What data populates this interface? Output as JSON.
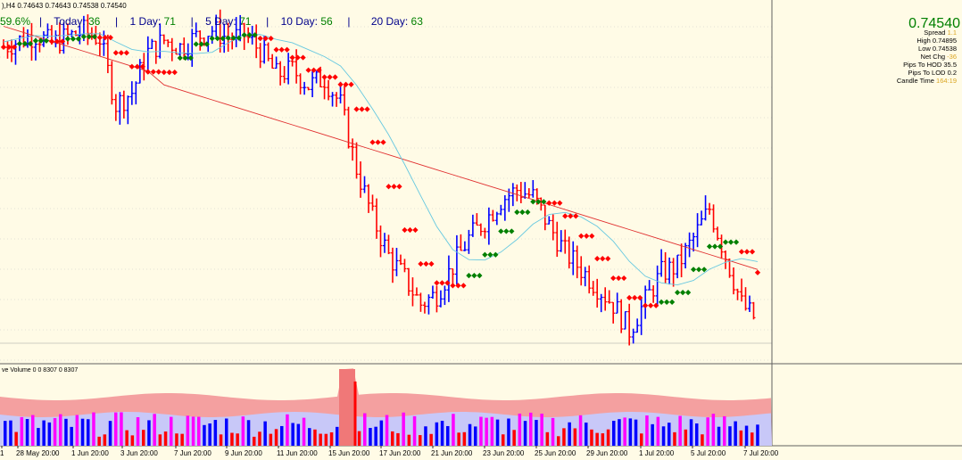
{
  "header": {
    "symbol_line": "),H4  0.74643 0.74643 0.74538 0.74540"
  },
  "stats": {
    "pct": "59.6%",
    "today_label": "Today:",
    "today_val": "36",
    "d1_label": "1 Day:",
    "d1_val": "71",
    "d5_label": "5 Day:",
    "d5_val": "71",
    "d10_label": "10 Day:",
    "d10_val": "56",
    "d20_label": "20 Day:",
    "d20_val": "63",
    "sep": "|"
  },
  "price": {
    "last": "0.74540"
  },
  "info": {
    "rows": [
      {
        "k": "Spread",
        "v": "1.1",
        "y": true
      },
      {
        "k": "High",
        "v": "0.74895",
        "y": false
      },
      {
        "k": "Low",
        "v": "0.74538",
        "y": false
      },
      {
        "k": "Net Chg",
        "v": "-36",
        "y": true
      },
      {
        "k": "Pips To HOD",
        "v": "35.5",
        "y": false
      },
      {
        "k": "Pips To LOD",
        "v": "0.2",
        "y": false
      },
      {
        "k": "Candle Time",
        "v": "164:19",
        "y": true
      }
    ]
  },
  "volume": {
    "label": "ve Volume 0 0 8307 0 8307"
  },
  "x_labels": [
    "1",
    "28 May 20:00",
    "1 Jun 20:00",
    "3 Jun 20:00",
    "7 Jun 20:00",
    "9 Jun 20:00",
    "11 Jun 20:00",
    "15 Jun 20:00",
    "17 Jun 20:00",
    "21 Jun 20:00",
    "23 Jun 20:00",
    "25 Jun 20:00",
    "29 Jun 20:00",
    "1 Jul 20:00",
    "5 Jul 20:00",
    "7 Jul 20:00"
  ],
  "colors": {
    "bg": "#fffbe6",
    "up": "#0000ff",
    "down": "#ff0000",
    "ma_green": "#008000",
    "ma_red": "#ff0000",
    "ma_slow": "#e03030",
    "ma_fast": "#66c8e0",
    "vol_band_top": "#f4a0a0",
    "vol_band_mid": "#c8c8f8",
    "vol_up": "#0000ff",
    "vol_down": "#ff0000",
    "vol_mag": "#ff00ff"
  },
  "chart_data": {
    "type": "candlestick",
    "symbol": "H4",
    "x_tick_labels": [
      "1",
      "28 May 20:00",
      "1 Jun 20:00",
      "3 Jun 20:00",
      "7 Jun 20:00",
      "9 Jun 20:00",
      "11 Jun 20:00",
      "15 Jun 20:00",
      "17 Jun 20:00",
      "21 Jun 20:00",
      "23 Jun 20:00",
      "25 Jun 20:00",
      "29 Jun 20:00",
      "1 Jul 20:00",
      "5 Jul 20:00",
      "7 Jul 20:00"
    ],
    "close_path": [
      0.7738,
      0.7742,
      0.7745,
      0.774,
      0.7744,
      0.7747,
      0.7743,
      0.7705,
      0.7712,
      0.7735,
      0.7742,
      0.7738,
      0.7744,
      0.7748,
      0.7743,
      0.7745,
      0.7736,
      0.7722,
      0.7725,
      0.7716,
      0.772,
      0.7705,
      0.7668,
      0.764,
      0.7618,
      0.7605,
      0.759,
      0.7596,
      0.7612,
      0.7628,
      0.7638,
      0.765,
      0.7656,
      0.7652,
      0.7635,
      0.762,
      0.761,
      0.76,
      0.759,
      0.7575,
      0.7592,
      0.7608,
      0.7612,
      0.7628,
      0.7645,
      0.7618,
      0.759,
      0.758
    ],
    "last": 0.7454,
    "day_high": 0.74895,
    "day_low": 0.74538,
    "net_change": -36,
    "spread": 1.1,
    "pips_to_hod": 35.5,
    "pips_to_lod": 0.2,
    "candle_time": "164:19",
    "volume_last": 8307
  }
}
